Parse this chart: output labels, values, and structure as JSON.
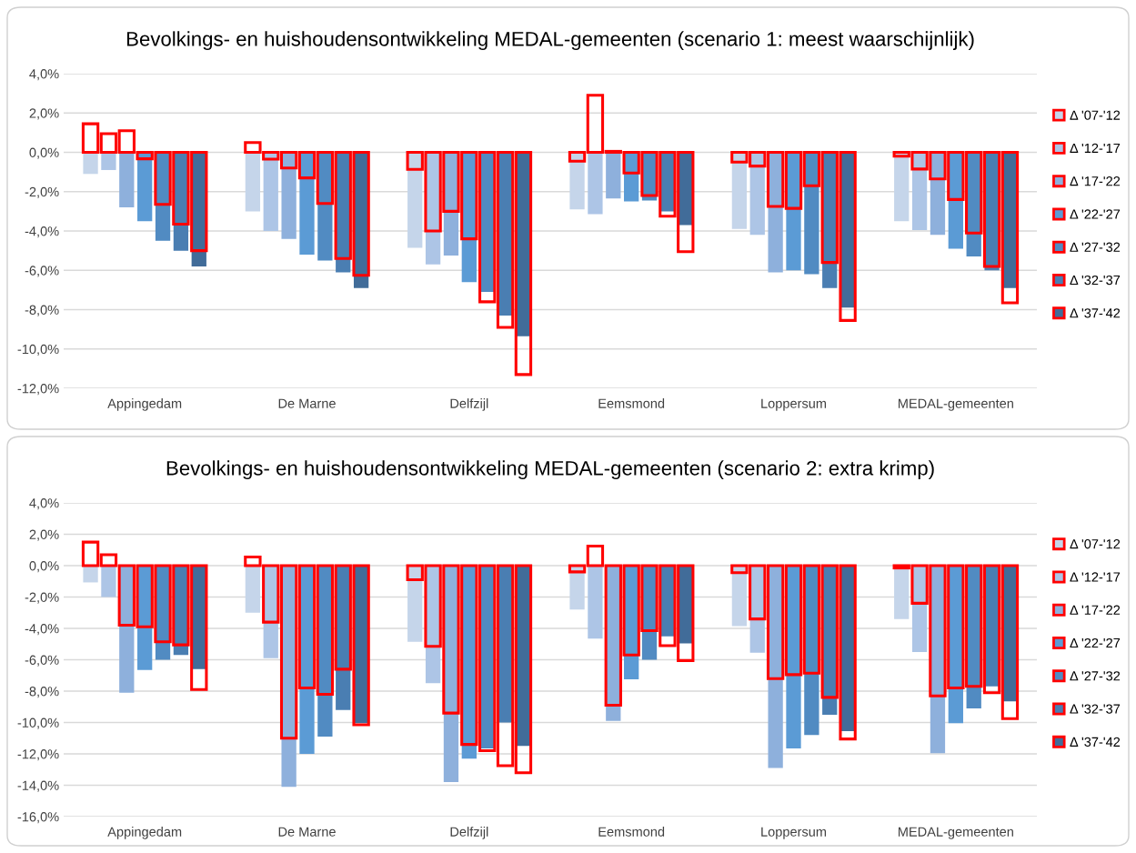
{
  "chart_data": [
    {
      "type": "bar",
      "title": "Bevolkings- en huishoudensontwikkeling MEDAL-gemeenten (scenario 1: meest waarschijnlijk)",
      "categories": [
        "Appingedam",
        "De Marne",
        "Delfzijl",
        "Eemsmond",
        "Loppersum",
        "MEDAL-gemeenten"
      ],
      "ylim": [
        -12,
        4
      ],
      "yticks": [
        {
          "value": 4,
          "label": "4,0%"
        },
        {
          "value": 2,
          "label": "2,0%"
        },
        {
          "value": 0,
          "label": "0,0%"
        },
        {
          "value": -2,
          "label": "-2,0%"
        },
        {
          "value": -4,
          "label": "-4,0%"
        },
        {
          "value": -6,
          "label": "-6,0%"
        },
        {
          "value": -8,
          "label": "-8,0%"
        },
        {
          "value": -10,
          "label": "-10,0%"
        },
        {
          "value": -12,
          "label": "-12,0%"
        }
      ],
      "grid": "y",
      "legend": "right",
      "series": [
        {
          "name": "Δ '07-'12",
          "color": "#c5d5ea",
          "values": [
            -1.1,
            -3.0,
            -4.85,
            -2.9,
            -3.9,
            -3.5
          ]
        },
        {
          "name": "Δ '12-'17",
          "color": "#adc5e6",
          "values": [
            -0.9,
            -4.0,
            -5.7,
            -3.15,
            -4.2,
            -3.95
          ]
        },
        {
          "name": "Δ '17-'22",
          "color": "#8eb0dc",
          "values": [
            -2.8,
            -4.4,
            -5.25,
            -2.35,
            -6.1,
            -4.2
          ]
        },
        {
          "name": "Δ '22-'27",
          "color": "#5b9bd5",
          "values": [
            -3.5,
            -5.2,
            -6.6,
            -2.5,
            -6.0,
            -4.9
          ]
        },
        {
          "name": "Δ '27-'32",
          "color": "#518bc2",
          "values": [
            -4.5,
            -5.5,
            -7.1,
            -2.45,
            -6.2,
            -5.3
          ]
        },
        {
          "name": "Δ '32-'37",
          "color": "#4a7eb2",
          "values": [
            -5.0,
            -6.1,
            -8.3,
            -3.0,
            -6.9,
            -6.0
          ]
        },
        {
          "name": "Δ '37-'42",
          "color": "#416c99",
          "values": [
            -5.8,
            -6.9,
            -9.35,
            -3.7,
            -7.9,
            -6.9
          ]
        },
        {
          "color": "#ff0000",
          "values": [
            1.45,
            0.5,
            -0.87,
            -0.45,
            -0.5,
            -0.2
          ]
        },
        {
          "color": "#ff0000",
          "values": [
            0.95,
            -0.35,
            -4.0,
            2.9,
            -0.7,
            -0.85
          ]
        },
        {
          "color": "#ff0000",
          "values": [
            1.1,
            -0.8,
            -3.0,
            0.05,
            -2.75,
            -1.35
          ]
        },
        {
          "color": "#ff0000",
          "values": [
            -0.33,
            -1.3,
            -4.4,
            -1.05,
            -2.85,
            -2.4
          ]
        },
        {
          "color": "#ff0000",
          "values": [
            -2.65,
            -2.6,
            -7.6,
            -2.2,
            -1.7,
            -4.1
          ]
        },
        {
          "color": "#ff0000",
          "values": [
            -3.65,
            -5.4,
            -8.9,
            -3.25,
            -5.6,
            -5.8
          ]
        },
        {
          "color": "#ff0000",
          "values": [
            -5.0,
            -6.25,
            -11.3,
            -5.05,
            -8.55,
            -7.65
          ]
        }
      ]
    },
    {
      "type": "bar",
      "title": "Bevolkings- en huishoudensontwikkeling MEDAL-gemeenten (scenario 2: extra krimp)",
      "categories": [
        "Appingedam",
        "De Marne",
        "Delfzijl",
        "Eemsmond",
        "Loppersum",
        "MEDAL-gemeenten"
      ],
      "ylim": [
        -16,
        4
      ],
      "yticks": [
        {
          "value": 4,
          "label": "4,0%"
        },
        {
          "value": 2,
          "label": "2,0%"
        },
        {
          "value": 0,
          "label": "0,0%"
        },
        {
          "value": -2,
          "label": "-2,0%"
        },
        {
          "value": -4,
          "label": "-4,0%"
        },
        {
          "value": -6,
          "label": "-6,0%"
        },
        {
          "value": -8,
          "label": "-8,0%"
        },
        {
          "value": -10,
          "label": "-10,0%"
        },
        {
          "value": -12,
          "label": "-12,0%"
        },
        {
          "value": -14,
          "label": "-14,0%"
        },
        {
          "value": -16,
          "label": "-16,0%"
        }
      ],
      "grid": "y",
      "legend": "right",
      "series": [
        {
          "name": "Δ '07-'12",
          "color": "#c5d5ea",
          "values": [
            -1.07,
            -3.0,
            -4.85,
            -2.8,
            -3.85,
            -3.4
          ]
        },
        {
          "name": "Δ '12-'17",
          "color": "#adc5e6",
          "values": [
            -2.0,
            -5.9,
            -7.5,
            -4.65,
            -5.55,
            -5.5
          ]
        },
        {
          "name": "Δ '17-'22",
          "color": "#8eb0dc",
          "values": [
            -8.1,
            -14.1,
            -13.8,
            -9.9,
            -12.9,
            -11.95
          ]
        },
        {
          "name": "Δ '22-'27",
          "color": "#5b9bd5",
          "values": [
            -6.65,
            -12.0,
            -12.3,
            -7.25,
            -11.65,
            -10.05
          ]
        },
        {
          "name": "Δ '27-'32",
          "color": "#518bc2",
          "values": [
            -6.0,
            -10.9,
            -11.65,
            -6.0,
            -10.8,
            -9.1
          ]
        },
        {
          "name": "Δ '32-'37",
          "color": "#4a7eb2",
          "values": [
            -5.7,
            -9.2,
            -10.0,
            -4.5,
            -9.5,
            -7.7
          ]
        },
        {
          "name": "Δ '37-'42",
          "color": "#416c99",
          "values": [
            -6.6,
            -10.05,
            -11.5,
            -4.95,
            -10.55,
            -8.65
          ]
        },
        {
          "color": "#ff0000",
          "values": [
            1.5,
            0.55,
            -0.9,
            -0.4,
            -0.45,
            -0.15
          ]
        },
        {
          "color": "#ff0000",
          "values": [
            0.7,
            -3.6,
            -5.15,
            1.25,
            -3.4,
            -2.4
          ]
        },
        {
          "color": "#ff0000",
          "values": [
            -3.8,
            -11.0,
            -9.4,
            -8.9,
            -7.2,
            -8.3
          ]
        },
        {
          "color": "#ff0000",
          "values": [
            -3.9,
            -7.8,
            -11.4,
            -5.7,
            -6.95,
            -7.8
          ]
        },
        {
          "color": "#ff0000",
          "values": [
            -4.85,
            -8.2,
            -11.8,
            -4.15,
            -6.85,
            -7.7
          ]
        },
        {
          "color": "#ff0000",
          "values": [
            -5.05,
            -6.6,
            -12.75,
            -5.1,
            -8.4,
            -8.1
          ]
        },
        {
          "color": "#ff0000",
          "values": [
            -7.9,
            -10.15,
            -13.2,
            -6.05,
            -11.05,
            -9.75
          ]
        }
      ]
    }
  ]
}
